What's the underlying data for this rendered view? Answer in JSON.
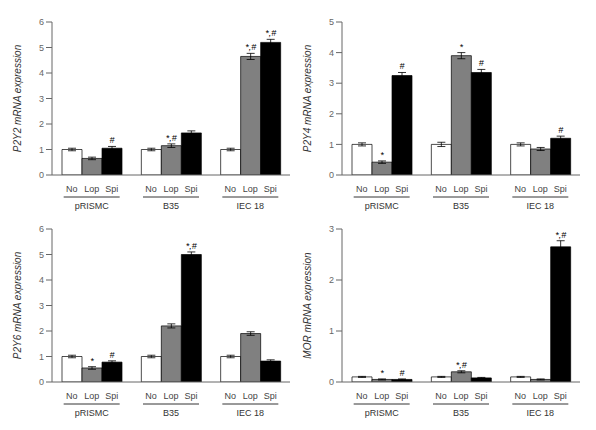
{
  "chart_data": [
    {
      "type": "bar",
      "ylabel": "P2Y2 mRNA expression",
      "categories": [
        "pRISMC",
        "B35",
        "IEC 18"
      ],
      "series": [
        {
          "name": "No",
          "color": "white",
          "values": [
            1.0,
            1.0,
            1.0
          ],
          "errors": [
            0.05,
            0.05,
            0.05
          ]
        },
        {
          "name": "Lop",
          "color": "gray",
          "values": [
            0.65,
            1.15,
            4.65
          ],
          "errors": [
            0.05,
            0.07,
            0.12
          ]
        },
        {
          "name": "Spi",
          "color": "black",
          "values": [
            1.05,
            1.65,
            5.2
          ],
          "errors": [
            0.07,
            0.08,
            0.12
          ]
        }
      ],
      "annotations": [
        {
          "category": "pRISMC",
          "series": "Spi",
          "text": "#"
        },
        {
          "category": "B35",
          "series": "Lop",
          "text": "*,#"
        },
        {
          "category": "IEC 18",
          "series": "Lop",
          "text": "*,#"
        },
        {
          "category": "IEC 18",
          "series": "Spi",
          "text": "*,#"
        }
      ],
      "ylim": [
        0,
        6
      ],
      "yticks": [
        0,
        1,
        2,
        3,
        4,
        5,
        6
      ],
      "grid": false
    },
    {
      "type": "bar",
      "ylabel": "P2Y4 mRNA expression",
      "categories": [
        "pRISMC",
        "B35",
        "IEC 18"
      ],
      "series": [
        {
          "name": "No",
          "color": "white",
          "values": [
            1.0,
            1.0,
            1.0
          ],
          "errors": [
            0.05,
            0.07,
            0.05
          ]
        },
        {
          "name": "Lop",
          "color": "gray",
          "values": [
            0.42,
            3.9,
            0.85
          ],
          "errors": [
            0.04,
            0.1,
            0.05
          ]
        },
        {
          "name": "Spi",
          "color": "black",
          "values": [
            3.25,
            3.35,
            1.2
          ],
          "errors": [
            0.1,
            0.1,
            0.07
          ]
        }
      ],
      "annotations": [
        {
          "category": "pRISMC",
          "series": "Lop",
          "text": "*"
        },
        {
          "category": "pRISMC",
          "series": "Spi",
          "text": "#"
        },
        {
          "category": "B35",
          "series": "Lop",
          "text": "*"
        },
        {
          "category": "B35",
          "series": "Spi",
          "text": "#"
        },
        {
          "category": "IEC 18",
          "series": "Spi",
          "text": "#"
        }
      ],
      "ylim": [
        0,
        5
      ],
      "yticks": [
        0,
        1,
        2,
        3,
        4,
        5
      ],
      "grid": false
    },
    {
      "type": "bar",
      "ylabel": "P2Y6 mRNA expression",
      "categories": [
        "pRISMC",
        "B35",
        "IEC 18"
      ],
      "series": [
        {
          "name": "No",
          "color": "white",
          "values": [
            1.0,
            1.0,
            1.0
          ],
          "errors": [
            0.05,
            0.05,
            0.05
          ]
        },
        {
          "name": "Lop",
          "color": "gray",
          "values": [
            0.55,
            2.2,
            1.9
          ],
          "errors": [
            0.05,
            0.08,
            0.07
          ]
        },
        {
          "name": "Spi",
          "color": "black",
          "values": [
            0.78,
            5.0,
            0.82
          ],
          "errors": [
            0.05,
            0.1,
            0.05
          ]
        }
      ],
      "annotations": [
        {
          "category": "pRISMC",
          "series": "Lop",
          "text": "*"
        },
        {
          "category": "pRISMC",
          "series": "Spi",
          "text": "#"
        },
        {
          "category": "B35",
          "series": "Spi",
          "text": "*,#"
        }
      ],
      "ylim": [
        0,
        6
      ],
      "yticks": [
        0,
        1,
        2,
        3,
        4,
        5,
        6
      ],
      "grid": false
    },
    {
      "type": "bar",
      "ylabel": "MOR mRNA expression",
      "categories": [
        "pRISMC",
        "B35",
        "IEC 18"
      ],
      "series": [
        {
          "name": "No",
          "color": "white",
          "values": [
            0.1,
            0.1,
            0.1
          ],
          "errors": [
            0.01,
            0.01,
            0.01
          ]
        },
        {
          "name": "Lop",
          "color": "gray",
          "values": [
            0.05,
            0.2,
            0.05
          ],
          "errors": [
            0.01,
            0.02,
            0.01
          ]
        },
        {
          "name": "Spi",
          "color": "black",
          "values": [
            0.05,
            0.08,
            2.65
          ],
          "errors": [
            0.01,
            0.01,
            0.12
          ]
        }
      ],
      "annotations": [
        {
          "category": "pRISMC",
          "series": "Lop",
          "text": "*"
        },
        {
          "category": "pRISMC",
          "series": "Spi",
          "text": "#"
        },
        {
          "category": "B35",
          "series": "Lop",
          "text": "*,#"
        },
        {
          "category": "IEC 18",
          "series": "Spi",
          "text": "*,#"
        }
      ],
      "ylim": [
        0,
        3
      ],
      "yticks": [
        0,
        1,
        2,
        3
      ],
      "grid": false
    }
  ]
}
